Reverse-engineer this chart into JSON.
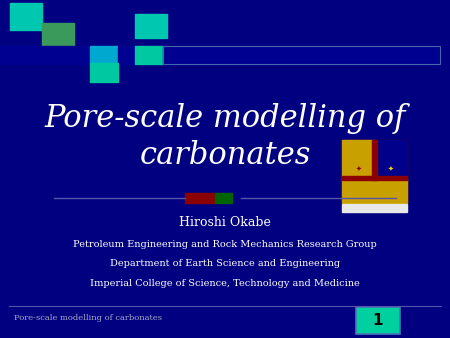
{
  "bg_color": "#000080",
  "title": "Pore-scale modelling of\ncarbonates",
  "title_color": "#ffffff",
  "title_fontsize": 22,
  "author": "Hiroshi Okabe",
  "author_fontsize": 9,
  "affil_lines": [
    "Petroleum Engineering and Rock Mechanics Research Group",
    "Department of Earth Science and Engineering",
    "Imperial College of Science, Technology and Medicine"
  ],
  "affil_fontsize": 7,
  "footer_text": "Pore-scale modelling of carbonates",
  "footer_fontsize": 6,
  "slide_number": "1",
  "slide_number_fontsize": 11,
  "text_color": "#ffffff",
  "teal1": "#00c8a0",
  "teal2": "#00c8b0",
  "teal3": "#3a9a5c",
  "cyan1": "#00a8d0",
  "dark_blue": "#000090",
  "separator_color": "#5555aa",
  "sq1_color": "#8b0000",
  "sq2_color": "#006400",
  "slide_num_box_color": "#00d0a0",
  "slide_num_box_border": "#4477bb",
  "footer_sep_color": "#5555aa"
}
